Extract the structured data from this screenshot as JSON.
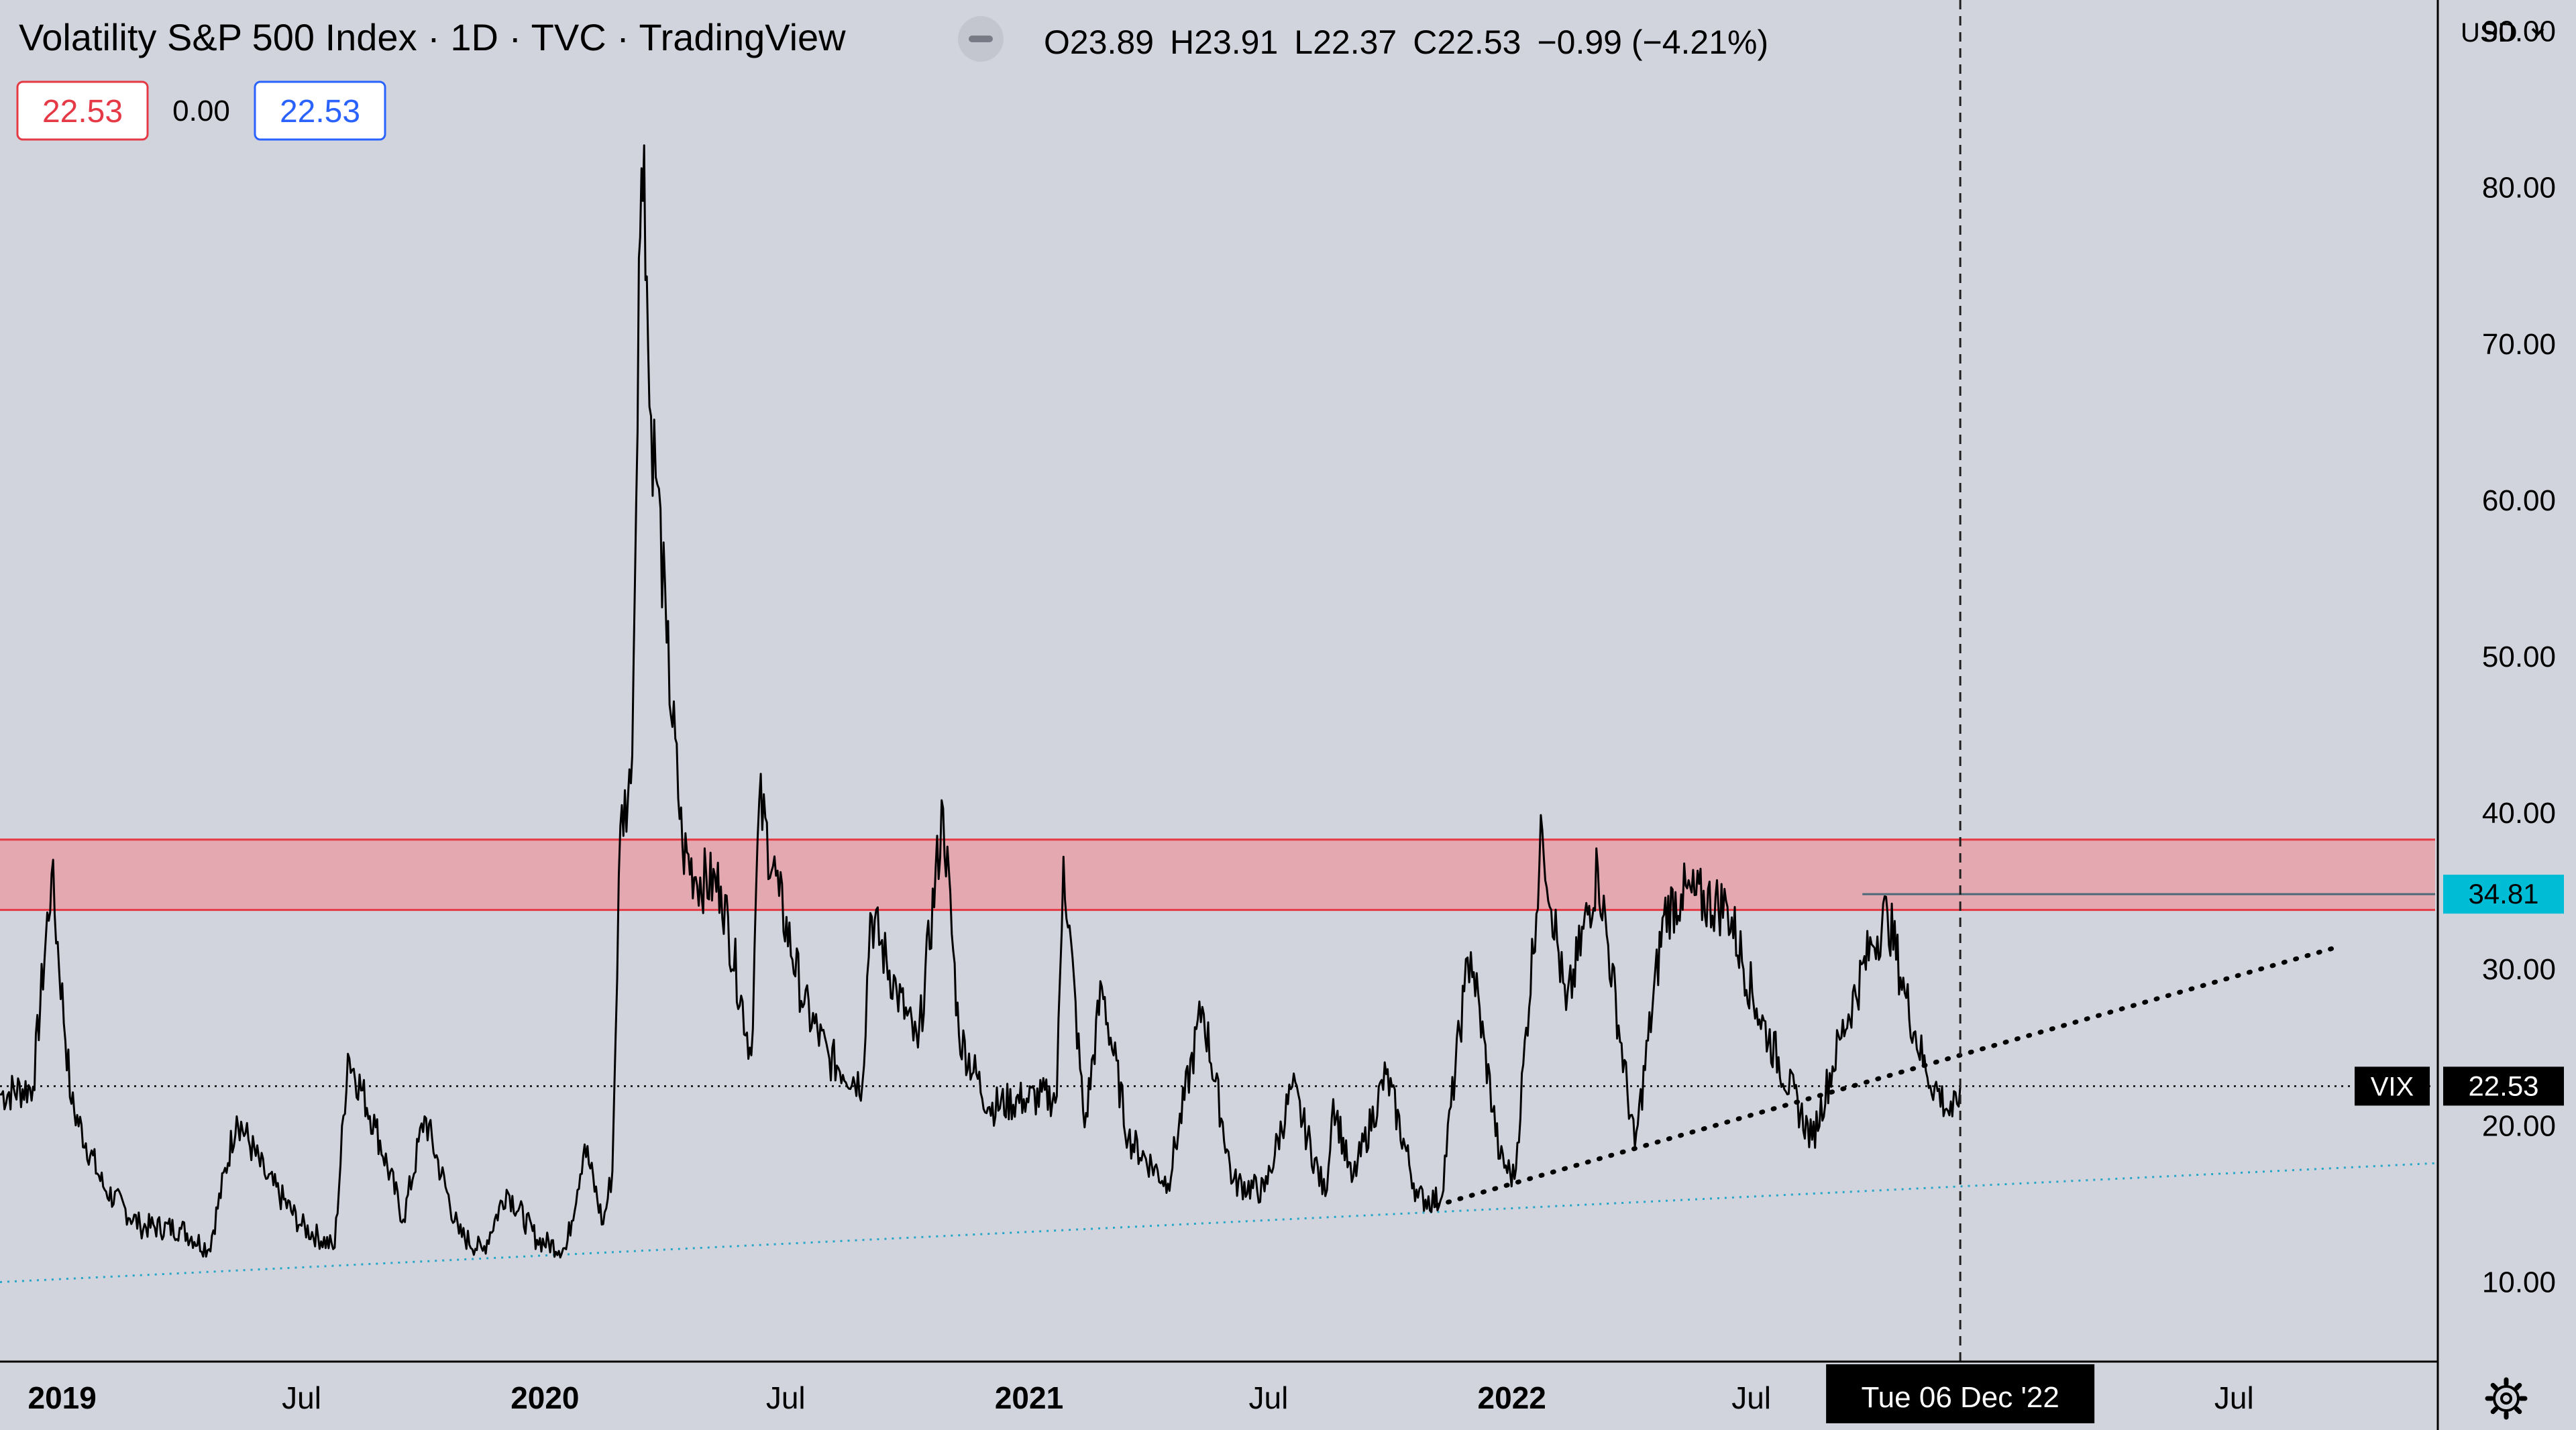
{
  "header": {
    "title": "Volatility S&P 500 Index · 1D · TVC · TradingView",
    "ohlc": {
      "o_label": "O",
      "o": "23.89",
      "h_label": "H",
      "h": "23.91",
      "l_label": "L",
      "l": "22.37",
      "c_label": "C",
      "c": "22.53",
      "change": "−0.99 (−4.21%)"
    },
    "input_left": "22.53",
    "input_mid": "0.00",
    "input_right": "22.53"
  },
  "price_axis": {
    "currency": "USD",
    "ticks": [
      "90.00",
      "80.00",
      "70.00",
      "60.00",
      "50.00",
      "40.00",
      "30.00",
      "20.00",
      "10.00"
    ],
    "symbol_label": "VIX",
    "last_price": "22.53",
    "level_label": "34.81"
  },
  "time_axis": {
    "ticks": [
      {
        "label": "2019",
        "date": "2019-01-01",
        "bold": true
      },
      {
        "label": "Jul",
        "date": "2019-07-01",
        "bold": false
      },
      {
        "label": "2020",
        "date": "2020-01-01",
        "bold": true
      },
      {
        "label": "Jul",
        "date": "2020-07-01",
        "bold": false
      },
      {
        "label": "2021",
        "date": "2021-01-01",
        "bold": true
      },
      {
        "label": "Jul",
        "date": "2021-07-01",
        "bold": false
      },
      {
        "label": "2022",
        "date": "2022-01-01",
        "bold": true
      },
      {
        "label": "Jul",
        "date": "2022-07-01",
        "bold": false
      },
      {
        "label": "Jul",
        "date": "2023-07-01",
        "bold": false
      }
    ],
    "crosshair_label": "Tue 06 Dec '22",
    "crosshair_date": "2022-12-06"
  },
  "colors": {
    "background": "#d1d4dc",
    "price_line": "#000000",
    "zone_fill": "#e8a0a8",
    "zone_border": "#e53945",
    "teal": "#26a6c8",
    "level_badge": "#00bcd4",
    "red_box": "#e53945",
    "blue_box": "#2962ff"
  },
  "icons": {
    "settings": "gear-icon",
    "minimize": "minus-icon",
    "dropdown": "chevron-down-icon"
  },
  "chart_data": {
    "type": "line",
    "x_type": "date",
    "ylim": [
      5,
      92
    ],
    "xlim": [
      "2018-11-15",
      "2023-11-30"
    ],
    "grid": false,
    "legend": "none",
    "series": [
      {
        "points": [
          [
            "2018-11-15",
            22.0
          ],
          [
            "2018-12-10",
            22.5
          ],
          [
            "2018-12-24",
            36.1
          ],
          [
            "2019-01-08",
            21.4
          ],
          [
            "2019-02-01",
            16.1
          ],
          [
            "2019-03-01",
            13.6
          ],
          [
            "2019-04-01",
            13.4
          ],
          [
            "2019-04-22",
            12.1
          ],
          [
            "2019-05-13",
            20.6
          ],
          [
            "2019-06-03",
            16.9
          ],
          [
            "2019-07-01",
            13.6
          ],
          [
            "2019-07-26",
            12.2
          ],
          [
            "2019-08-05",
            24.6
          ],
          [
            "2019-08-26",
            19.9
          ],
          [
            "2019-09-16",
            14.0
          ],
          [
            "2019-10-02",
            20.6
          ],
          [
            "2019-10-28",
            13.1
          ],
          [
            "2019-11-15",
            12.0
          ],
          [
            "2019-12-03",
            15.9
          ],
          [
            "2019-12-26",
            12.7
          ],
          [
            "2020-01-17",
            12.1
          ],
          [
            "2020-01-31",
            18.8
          ],
          [
            "2020-02-14",
            13.7
          ],
          [
            "2020-02-21",
            17.1
          ],
          [
            "2020-02-27",
            39.2
          ],
          [
            "2020-03-06",
            41.9
          ],
          [
            "2020-03-09",
            54.5
          ],
          [
            "2020-03-12",
            75.5
          ],
          [
            "2020-03-16",
            82.7
          ],
          [
            "2020-03-20",
            66.0
          ],
          [
            "2020-03-26",
            61.0
          ],
          [
            "2020-04-02",
            50.9
          ],
          [
            "2020-04-14",
            37.8
          ],
          [
            "2020-04-24",
            35.9
          ],
          [
            "2020-05-13",
            35.3
          ],
          [
            "2020-06-05",
            24.5
          ],
          [
            "2020-06-11",
            40.8
          ],
          [
            "2020-06-26",
            34.7
          ],
          [
            "2020-07-15",
            27.8
          ],
          [
            "2020-08-03",
            24.3
          ],
          [
            "2020-08-28",
            22.7
          ],
          [
            "2020-09-03",
            33.6
          ],
          [
            "2020-09-23",
            28.6
          ],
          [
            "2020-10-09",
            25.0
          ],
          [
            "2020-10-28",
            40.3
          ],
          [
            "2020-11-09",
            25.8
          ],
          [
            "2020-12-02",
            21.2
          ],
          [
            "2020-12-28",
            21.7
          ],
          [
            "2021-01-22",
            21.9
          ],
          [
            "2021-01-27",
            37.2
          ],
          [
            "2021-02-12",
            19.9
          ],
          [
            "2021-02-25",
            28.9
          ],
          [
            "2021-03-17",
            19.2
          ],
          [
            "2021-04-16",
            16.3
          ],
          [
            "2021-05-12",
            27.6
          ],
          [
            "2021-06-04",
            16.4
          ],
          [
            "2021-06-28",
            15.8
          ],
          [
            "2021-07-19",
            22.5
          ],
          [
            "2021-08-13",
            15.5
          ],
          [
            "2021-08-19",
            21.7
          ],
          [
            "2021-09-02",
            16.4
          ],
          [
            "2021-09-28",
            23.3
          ],
          [
            "2021-10-22",
            15.4
          ],
          [
            "2021-11-08",
            15.2
          ],
          [
            "2021-11-26",
            28.6
          ],
          [
            "2021-12-01",
            31.1
          ],
          [
            "2021-12-23",
            17.9
          ],
          [
            "2022-01-03",
            16.6
          ],
          [
            "2022-01-24",
            38.9
          ],
          [
            "2022-02-11",
            27.4
          ],
          [
            "2022-03-07",
            36.5
          ],
          [
            "2022-04-04",
            18.6
          ],
          [
            "2022-04-26",
            33.5
          ],
          [
            "2022-05-09",
            34.8
          ],
          [
            "2022-06-13",
            34.0
          ],
          [
            "2022-07-05",
            27.5
          ],
          [
            "2022-08-16",
            19.1
          ],
          [
            "2022-09-06",
            25.5
          ],
          [
            "2022-09-30",
            31.6
          ],
          [
            "2022-10-12",
            33.6
          ],
          [
            "2022-10-25",
            28.5
          ],
          [
            "2022-11-10",
            23.5
          ],
          [
            "2022-11-30",
            20.6
          ],
          [
            "2022-12-06",
            22.5
          ]
        ]
      }
    ],
    "annotations": {
      "resistance_zone": {
        "y_low": 33.8,
        "y_high": 38.3,
        "x_start": "2018-11-15",
        "x_end": "2023-11-30"
      },
      "horizontal_level": {
        "y": 34.81,
        "x_start": "2022-09-23",
        "x_end": "2023-11-30"
      },
      "last_price_line": {
        "y": 22.53
      },
      "dotted_trend": {
        "x1": "2021-11-05",
        "y1": 14.9,
        "x2": "2023-09-20",
        "y2": 31.5
      },
      "teal_trend": {
        "x1": "2018-11-15",
        "y1": 10.0,
        "x2": "2023-11-30",
        "y2": 17.6
      },
      "crosshair_x": "2022-12-06"
    }
  }
}
